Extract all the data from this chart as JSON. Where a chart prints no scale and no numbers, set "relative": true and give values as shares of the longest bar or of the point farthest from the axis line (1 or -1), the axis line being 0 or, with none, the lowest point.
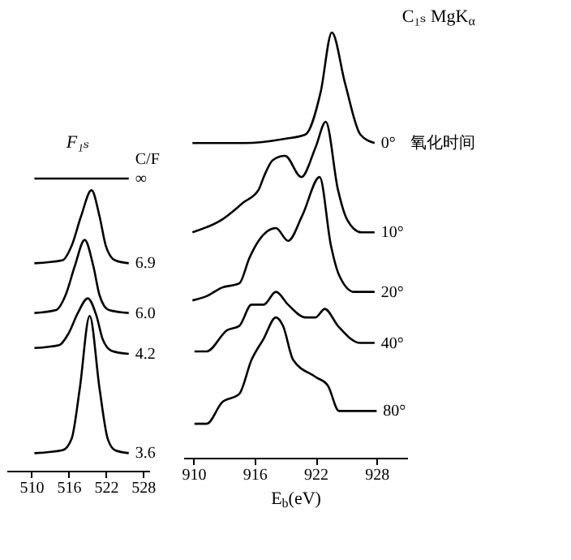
{
  "chart_data": [
    {
      "type": "line",
      "title": "F₁ₛ",
      "relative": true,
      "xlim": [
        506,
        529
      ],
      "xticks": [
        510,
        516,
        522,
        528
      ],
      "annotations": [
        "C/F"
      ],
      "series": [
        {
          "name": "∞",
          "color": "#000000",
          "x": [
            510.5,
            525.7
          ],
          "values": [
            1,
            1
          ]
        },
        {
          "name": "6.9",
          "color": "#000000",
          "x": [
            510.5,
            515,
            516.5,
            518,
            519.7,
            521,
            522,
            523.5,
            525.7
          ],
          "values": [
            0.71,
            0.72,
            0.77,
            0.87,
            0.96,
            0.87,
            0.77,
            0.72,
            0.71
          ]
        },
        {
          "name": "6.0",
          "color": "#000000",
          "x": [
            510.5,
            514,
            515.5,
            517,
            518.6,
            520,
            521,
            522.5,
            525.7
          ],
          "values": [
            0.54,
            0.55,
            0.6,
            0.7,
            0.79,
            0.7,
            0.6,
            0.55,
            0.54
          ]
        },
        {
          "name": "4.2",
          "color": "#000000",
          "x": [
            510.5,
            514.5,
            516,
            517.5,
            519.1,
            520.5,
            521.5,
            523,
            525.7
          ],
          "values": [
            0.42,
            0.43,
            0.47,
            0.54,
            0.59,
            0.53,
            0.45,
            0.41,
            0.4
          ]
        },
        {
          "name": "3.6",
          "color": "#000000",
          "x": [
            510.5,
            515,
            516.5,
            517.8,
            519.4,
            521,
            522.3,
            523.5,
            525.7
          ],
          "values": [
            0.06,
            0.07,
            0.11,
            0.28,
            0.53,
            0.28,
            0.11,
            0.07,
            0.06
          ]
        }
      ]
    },
    {
      "type": "line",
      "title": "C₁ₛ  MgK$_{α}$",
      "xlabel": "E$_{b}$(eV)",
      "relative": true,
      "xlim": [
        909,
        931
      ],
      "xticks": [
        910,
        916,
        922,
        928
      ],
      "annotations": [
        "氧化时间"
      ],
      "series": [
        {
          "name": "0°",
          "color": "#000000",
          "x": [
            909.9,
            915,
            919,
            921,
            922.5,
            923.6,
            924.9,
            926.4,
            927.8
          ],
          "values": [
            0.74,
            0.74,
            0.75,
            0.76,
            0.86,
            1,
            0.88,
            0.76,
            0.74
          ]
        },
        {
          "name": "10°",
          "color": "#000000",
          "x": [
            909.9,
            912.8,
            914.9,
            916.4,
            916.9,
            917.8,
            919,
            920.6,
            922,
            923,
            924.2,
            925.1,
            926.5,
            927.8
          ],
          "values": [
            0.53,
            0.56,
            0.6,
            0.63,
            0.66,
            0.7,
            0.71,
            0.66,
            0.73,
            0.79,
            0.63,
            0.56,
            0.53,
            0.53
          ]
        },
        {
          "name": "20°",
          "color": "#000000",
          "x": [
            909.9,
            911.3,
            912.8,
            914.5,
            915.5,
            916.4,
            918.1,
            919.3,
            920.7,
            922.4,
            923.5,
            924.3,
            925.8,
            927.8
          ],
          "values": [
            0.37,
            0.38,
            0.4,
            0.41,
            0.47,
            0.51,
            0.54,
            0.51,
            0.57,
            0.66,
            0.5,
            0.43,
            0.39,
            0.39
          ]
        },
        {
          "name": "40°",
          "color": "#000000",
          "x": [
            910.1,
            911.3,
            913.3,
            914.5,
            915.7,
            916.9,
            918.1,
            919.3,
            921,
            922,
            922.9,
            924.2,
            926.4,
            927.8
          ],
          "values": [
            0.25,
            0.25,
            0.3,
            0.31,
            0.36,
            0.36,
            0.39,
            0.36,
            0.33,
            0.33,
            0.35,
            0.31,
            0.27,
            0.27
          ]
        },
        {
          "name": "80°",
          "color": "#000000",
          "x": [
            910.1,
            911.3,
            912.8,
            914.5,
            915.7,
            916.9,
            918.1,
            918.8,
            919.8,
            922,
            923.2,
            924.3,
            926.4,
            928
          ],
          "values": [
            0.08,
            0.08,
            0.13,
            0.15,
            0.23,
            0.28,
            0.33,
            0.31,
            0.23,
            0.19,
            0.17,
            0.11,
            0.11,
            0.11
          ]
        }
      ]
    }
  ]
}
